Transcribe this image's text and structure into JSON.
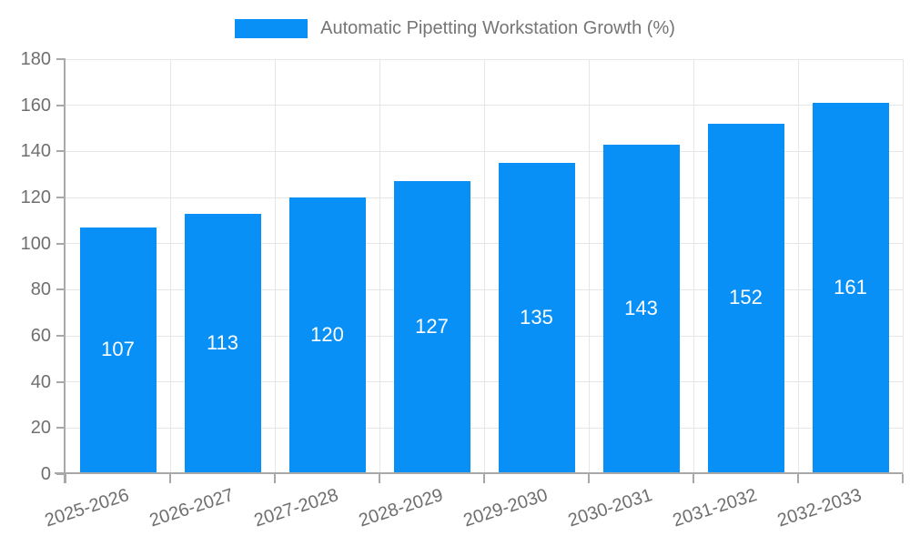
{
  "legend": {
    "label": "Automatic Pipetting Workstation Growth (%)"
  },
  "chart_data": {
    "type": "bar",
    "title": "Automatic Pipetting Workstation Growth (%)",
    "categories": [
      "2025-2026",
      "2026-2027",
      "2027-2028",
      "2028-2029",
      "2029-2030",
      "2030-2031",
      "2031-2032",
      "2032-2033"
    ],
    "values": [
      107,
      113,
      120,
      127,
      135,
      143,
      152,
      161
    ],
    "xlabel": "",
    "ylabel": "",
    "ylim": [
      0,
      180
    ],
    "yticks": [
      0,
      20,
      40,
      60,
      80,
      100,
      120,
      140,
      160,
      180
    ],
    "grid": true,
    "legend_position": "top-center",
    "value_labels_inside": true,
    "x_label_rotation_deg": -18
  },
  "colors": {
    "background": "#ffffff",
    "bar": "#0890f7",
    "axis_line": "#a8a8a8",
    "gridline": "#e6e6e6",
    "tick_text": "#6f6f6f",
    "legend_text": "#757575",
    "bar_value_text": "#ffffff"
  }
}
